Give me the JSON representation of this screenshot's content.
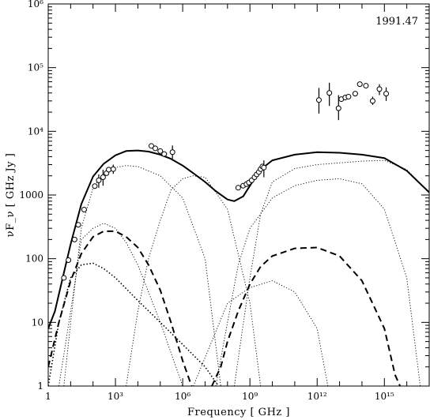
{
  "chart_data": {
    "type": "scatter",
    "title": "",
    "annotation": "1991.47",
    "xlabel": "Frequency [ GHz ]",
    "ylabel": "νF_ν [ GHz Jy ]",
    "xscale": "log",
    "yscale": "log",
    "xlim": [
      1,
      1e+17
    ],
    "ylim": [
      1,
      1000000.0
    ],
    "grid": false,
    "legend": "none",
    "x_ticks": [
      {
        "value": 1,
        "label": "1"
      },
      {
        "value": 1000,
        "label": "10³"
      },
      {
        "value": 1000000,
        "label": "10⁶"
      },
      {
        "value": 1000000000,
        "label": "10⁹"
      },
      {
        "value": 1000000000000,
        "label": "10¹²"
      },
      {
        "value": 1000000000000000,
        "label": "10¹⁵"
      }
    ],
    "y_ticks": [
      {
        "value": 1,
        "label": "1"
      },
      {
        "value": 10,
        "label": "10"
      },
      {
        "value": 100,
        "label": "100"
      },
      {
        "value": 1000,
        "label": "1000"
      },
      {
        "value": 10000,
        "label": "10⁴"
      },
      {
        "value": 100000,
        "label": "10⁵"
      },
      {
        "value": 1000000,
        "label": "10⁶"
      }
    ],
    "observations": [
      {
        "x": 5.0,
        "y": 50
      },
      {
        "x": 8.0,
        "y": 95
      },
      {
        "x": 15,
        "y": 200
      },
      {
        "x": 22,
        "y": 340
      },
      {
        "x": 40,
        "y": 590
      },
      {
        "x": 120,
        "y": 1380
      },
      {
        "x": 180,
        "y": 1700,
        "ylo": 1300,
        "yhi": 2100
      },
      {
        "x": 280,
        "y": 1900,
        "ylo": 1400,
        "yhi": 2500
      },
      {
        "x": 400,
        "y": 2200
      },
      {
        "x": 500,
        "y": 2500
      },
      {
        "x": 800,
        "y": 2550,
        "ylo": 2150,
        "yhi": 3000
      },
      {
        "x": 40000,
        "y": 5900
      },
      {
        "x": 60000,
        "y": 5400
      },
      {
        "x": 100000,
        "y": 4900
      },
      {
        "x": 150000,
        "y": 4400
      },
      {
        "x": 350000,
        "y": 4700,
        "ylo": 3700,
        "yhi": 6000
      },
      {
        "x": 300000000,
        "y": 1300
      },
      {
        "x": 500000000,
        "y": 1400
      },
      {
        "x": 700000000,
        "y": 1480
      },
      {
        "x": 900000000,
        "y": 1570
      },
      {
        "x": 1200000000,
        "y": 1700
      },
      {
        "x": 1600000000,
        "y": 1900
      },
      {
        "x": 2000000000,
        "y": 2100
      },
      {
        "x": 2500000000,
        "y": 2300
      },
      {
        "x": 3000000000,
        "y": 2550
      },
      {
        "x": 3600000000,
        "y": 2800
      },
      {
        "x": 4200000000,
        "y": 2700,
        "ylo": 1900,
        "yhi": 3500
      },
      {
        "x": 1200000000000,
        "y": 31000,
        "ylo": 19000,
        "yhi": 48000
      },
      {
        "x": 3500000000000,
        "y": 40000,
        "ylo": 25000,
        "yhi": 58000
      },
      {
        "x": 9000000000000,
        "y": 23000,
        "ylo": 15000,
        "yhi": 37000
      },
      {
        "x": 12000000000000,
        "y": 32000
      },
      {
        "x": 18000000000000,
        "y": 34000
      },
      {
        "x": 25000000000000,
        "y": 35000
      },
      {
        "x": 50000000000000,
        "y": 39000
      },
      {
        "x": 80000000000000,
        "y": 55000
      },
      {
        "x": 150000000000000,
        "y": 52000
      },
      {
        "x": 300000000000000,
        "y": 30000,
        "ylo": 26000,
        "yhi": 35000
      },
      {
        "x": 600000000000000,
        "y": 46000,
        "ylo": 37000,
        "yhi": 55000
      },
      {
        "x": 1200000000000000,
        "y": 39000,
        "ylo": 30000,
        "yhi": 49000
      }
    ],
    "components": [
      {
        "style": "solid",
        "points": [
          [
            1,
            8
          ],
          [
            2,
            15
          ],
          [
            5,
            60
          ],
          [
            10,
            170
          ],
          [
            30,
            720
          ],
          [
            100,
            1950
          ],
          [
            300,
            3100
          ],
          [
            1000,
            4200
          ],
          [
            3000,
            4900
          ],
          [
            10000,
            5000
          ],
          [
            30000,
            4800
          ],
          [
            100000,
            4300
          ],
          [
            300000,
            3700
          ],
          [
            1000000,
            2900
          ],
          [
            3000000,
            2200
          ],
          [
            10000000,
            1600
          ],
          [
            30000000,
            1150
          ],
          [
            100000000,
            850
          ],
          [
            200000000,
            800
          ],
          [
            500000000,
            950
          ],
          [
            1000000000,
            1400
          ],
          [
            3000000000,
            2500
          ],
          [
            10000000000,
            3500
          ],
          [
            100000000000,
            4300
          ],
          [
            1000000000000,
            4700
          ],
          [
            10000000000000,
            4600
          ],
          [
            100000000000000,
            4300
          ],
          [
            1000000000000000,
            3800
          ],
          [
            10000000000000000,
            2400
          ],
          [
            100000000000000000,
            1100
          ]
        ]
      },
      {
        "style": "dashed",
        "points": [
          [
            1,
            2
          ],
          [
            3,
            10
          ],
          [
            10,
            45
          ],
          [
            30,
            120
          ],
          [
            100,
            220
          ],
          [
            300,
            270
          ],
          [
            1000,
            270
          ],
          [
            3000,
            220
          ],
          [
            10000,
            150
          ],
          [
            30000,
            80
          ],
          [
            100000,
            32
          ],
          [
            300000,
            10
          ],
          [
            1000000,
            2.5
          ],
          [
            2500000,
            1
          ]
        ]
      },
      {
        "style": "dashed",
        "points": [
          [
            20000000,
            1
          ],
          [
            50000000,
            2
          ],
          [
            100000000,
            5
          ],
          [
            300000000,
            15
          ],
          [
            1000000000,
            40
          ],
          [
            3000000000,
            75
          ],
          [
            10000000000,
            110
          ],
          [
            100000000000,
            145
          ],
          [
            1000000000000,
            150
          ],
          [
            10000000000000,
            110
          ],
          [
            100000000000000,
            45
          ],
          [
            1000000000000000,
            8
          ],
          [
            3000000000000000,
            1.5
          ],
          [
            5000000000000000,
            1
          ]
        ]
      },
      {
        "style": "dotted-heavy",
        "points": [
          [
            1,
            1
          ],
          [
            3,
            10
          ],
          [
            10,
            50
          ],
          [
            30,
            80
          ],
          [
            100,
            85
          ],
          [
            300,
            70
          ],
          [
            1000,
            50
          ],
          [
            10000,
            22
          ],
          [
            100000,
            10
          ],
          [
            1000000,
            4.5
          ],
          [
            10000000,
            2
          ],
          [
            40000000,
            1
          ]
        ]
      },
      {
        "style": "dotted",
        "points": [
          [
            3,
            1
          ],
          [
            10,
            15
          ],
          [
            30,
            200
          ],
          [
            100,
            300
          ],
          [
            300,
            360
          ],
          [
            1000,
            300
          ],
          [
            3000,
            180
          ],
          [
            10000,
            80
          ],
          [
            100000,
            10
          ],
          [
            1000000,
            1
          ]
        ]
      },
      {
        "style": "dotted",
        "points": [
          [
            5,
            1
          ],
          [
            10,
            10
          ],
          [
            30,
            300
          ],
          [
            100,
            1300
          ],
          [
            300,
            2200
          ],
          [
            1000,
            2700
          ],
          [
            3000,
            2900
          ],
          [
            10000,
            2800
          ],
          [
            100000,
            2000
          ],
          [
            1000000,
            900
          ],
          [
            10000000,
            100
          ],
          [
            50000000,
            1
          ]
        ]
      },
      {
        "style": "dotted",
        "points": [
          [
            3000,
            1
          ],
          [
            10000,
            15
          ],
          [
            30000,
            100
          ],
          [
            100000,
            400
          ],
          [
            300000,
            1200
          ],
          [
            1000000,
            1800
          ],
          [
            3000000,
            2000
          ],
          [
            10000000,
            1900
          ],
          [
            100000000,
            600
          ],
          [
            1000000000,
            20
          ],
          [
            3000000000,
            1
          ]
        ]
      },
      {
        "style": "dotted",
        "points": [
          [
            3000000,
            1
          ],
          [
            100000000,
            20
          ],
          [
            1000000000,
            35
          ],
          [
            10000000000,
            45
          ],
          [
            100000000000,
            30
          ],
          [
            1000000000000,
            8
          ],
          [
            3000000000000,
            1
          ]
        ]
      },
      {
        "style": "dotted",
        "points": [
          [
            30000000,
            1
          ],
          [
            100000000,
            10
          ],
          [
            300000000,
            80
          ],
          [
            1000000000,
            300
          ],
          [
            10000000000,
            900
          ],
          [
            100000000000,
            1400
          ],
          [
            1000000000000,
            1700
          ],
          [
            10000000000000,
            1800
          ],
          [
            100000000000000,
            1500
          ],
          [
            1000000000000000,
            600
          ],
          [
            10000000000000000,
            50
          ],
          [
            40000000000000000,
            1
          ]
        ]
      },
      {
        "style": "dotted",
        "points": [
          [
            200000000,
            1
          ],
          [
            1000000000,
            50
          ],
          [
            3000000000,
            500
          ],
          [
            10000000000,
            1600
          ],
          [
            100000000000,
            2600
          ],
          [
            1000000000000,
            3000
          ],
          [
            10000000000000,
            3200
          ],
          [
            100000000000000,
            3400
          ],
          [
            1000000000000000,
            3500
          ],
          [
            10000000000000000,
            2500
          ],
          [
            100000000000000000,
            1100
          ]
        ]
      }
    ]
  }
}
